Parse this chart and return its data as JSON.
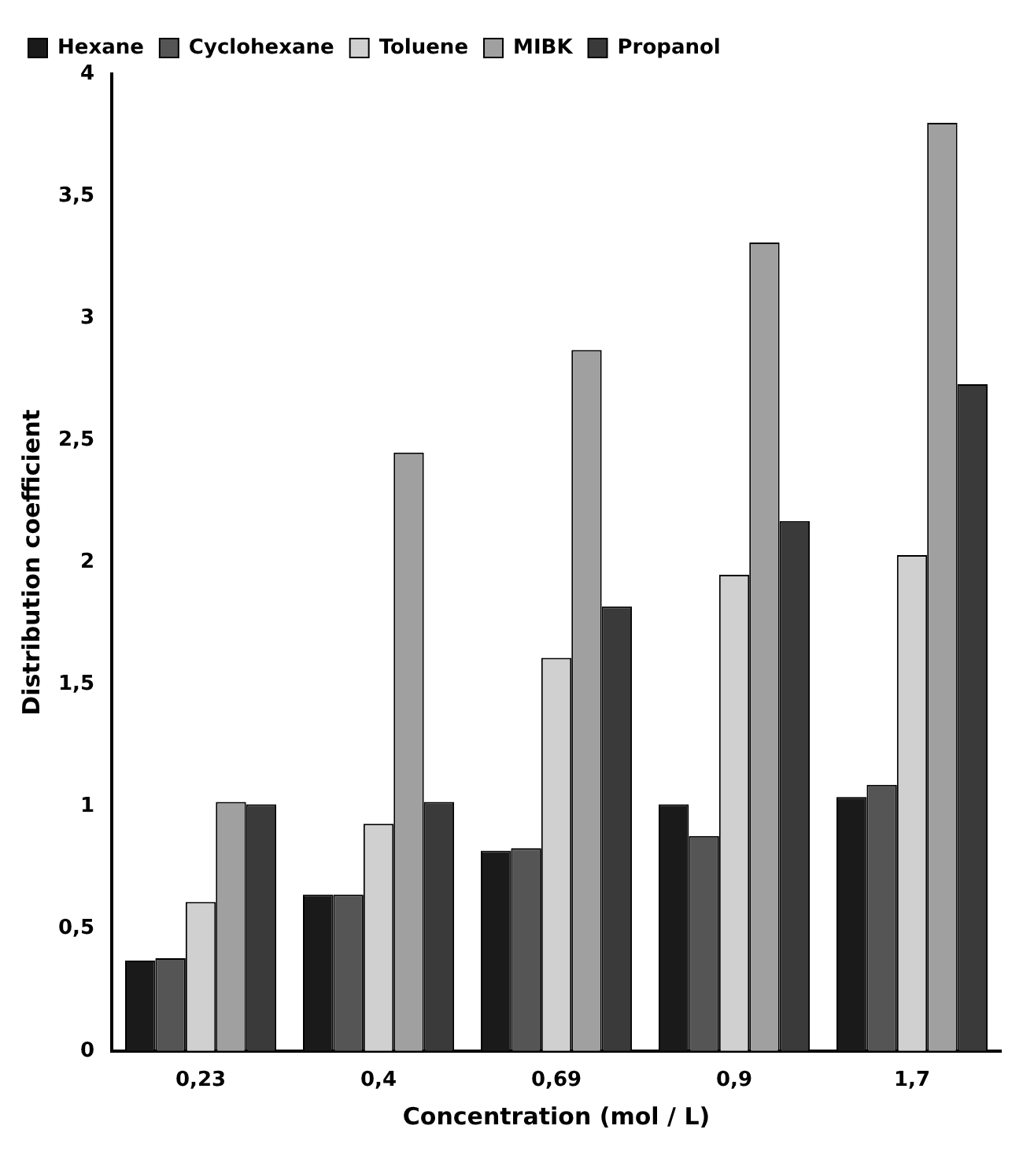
{
  "chart_data": {
    "type": "bar",
    "xlabel": "Concentration (mol / L)",
    "ylabel": "Distribution coefficient",
    "categories": [
      "0,23",
      "0,4",
      "0,69",
      "0,9",
      "1,7"
    ],
    "series": [
      {
        "name": "Hexane",
        "color": "#1a1a1a",
        "values": [
          0.37,
          0.64,
          0.82,
          1.01,
          1.04
        ]
      },
      {
        "name": "Cyclohexane",
        "color": "#555555",
        "values": [
          0.38,
          0.64,
          0.83,
          0.88,
          1.09
        ]
      },
      {
        "name": "Toluene",
        "color": "#d0d0d0",
        "values": [
          0.61,
          0.93,
          1.61,
          1.95,
          2.03
        ]
      },
      {
        "name": "MIBK",
        "color": "#a0a0a0",
        "values": [
          1.02,
          2.45,
          2.87,
          3.31,
          3.8
        ]
      },
      {
        "name": "Propanol",
        "color": "#3a3a3a",
        "values": [
          1.01,
          1.02,
          1.82,
          2.17,
          2.73
        ]
      }
    ],
    "ylim": [
      0,
      4
    ],
    "yticks": [
      0,
      {
        "value": 0.5,
        "label": "0,5"
      },
      1,
      {
        "value": 1.5,
        "label": "1,5"
      },
      2,
      {
        "value": 2.5,
        "label": "2,5"
      },
      3,
      {
        "value": 3.5,
        "label": "3,5"
      },
      4
    ],
    "grid": false,
    "legend": "top left"
  }
}
